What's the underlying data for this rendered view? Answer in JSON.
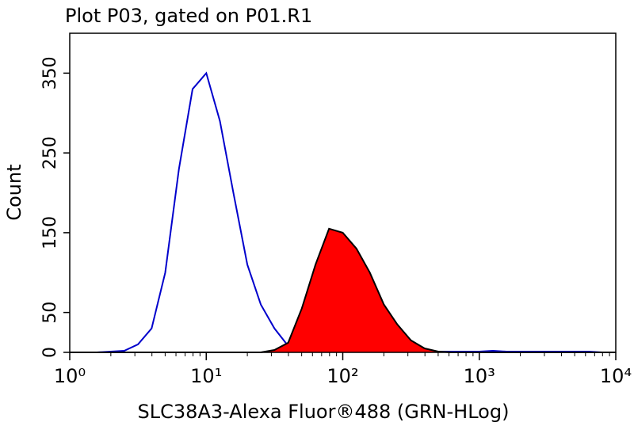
{
  "chart_data": {
    "type": "line",
    "title": "Plot P03, gated on P01.R1",
    "x_label": "SLC38A3-Alexa Fluor®488 (GRN-HLog)",
    "y_label": "Count",
    "log_x": true,
    "x": [
      1,
      1.26,
      1.58,
      2,
      2.51,
      3.16,
      3.98,
      5.01,
      6.31,
      7.94,
      10,
      12.6,
      15.8,
      20,
      25.1,
      31.6,
      39.8,
      50.1,
      63.1,
      79.4,
      100,
      126,
      158,
      200,
      251,
      316,
      398,
      501,
      631,
      794,
      1000,
      1260,
      1580,
      2000,
      2510,
      3160,
      3980,
      5010,
      6310,
      7940,
      10000
    ],
    "series": [
      {
        "color": "#0000cc",
        "filled": false,
        "values": [
          0,
          0,
          0,
          1,
          2,
          10,
          30,
          100,
          230,
          330,
          350,
          290,
          200,
          110,
          60,
          30,
          8,
          2,
          1,
          1,
          1,
          1,
          1,
          1,
          1,
          2,
          1,
          1,
          1,
          1,
          1,
          2,
          1,
          1,
          1,
          1,
          1,
          1,
          1,
          0,
          0
        ]
      },
      {
        "color": "#ff0000",
        "line_color": "#000000",
        "filled": true,
        "values": [
          0,
          0,
          0,
          0,
          0,
          0,
          0,
          0,
          0,
          0,
          0,
          0,
          0,
          0,
          0,
          3,
          12,
          55,
          110,
          155,
          150,
          130,
          100,
          60,
          35,
          15,
          5,
          1,
          0,
          0,
          0,
          0,
          0,
          0,
          0,
          0,
          0,
          0,
          0,
          0,
          0
        ]
      }
    ],
    "xlim": [
      1,
      10000
    ],
    "xticks": [
      {
        "value": 1,
        "label": "10⁰"
      },
      {
        "value": 10,
        "label": "10¹"
      },
      {
        "value": 100,
        "label": "10²"
      },
      {
        "value": 1000,
        "label": "10³"
      },
      {
        "value": 10000,
        "label": "10⁴"
      }
    ],
    "ylim": [
      0,
      400
    ],
    "yticks": [
      0,
      50,
      150,
      250,
      350
    ]
  }
}
